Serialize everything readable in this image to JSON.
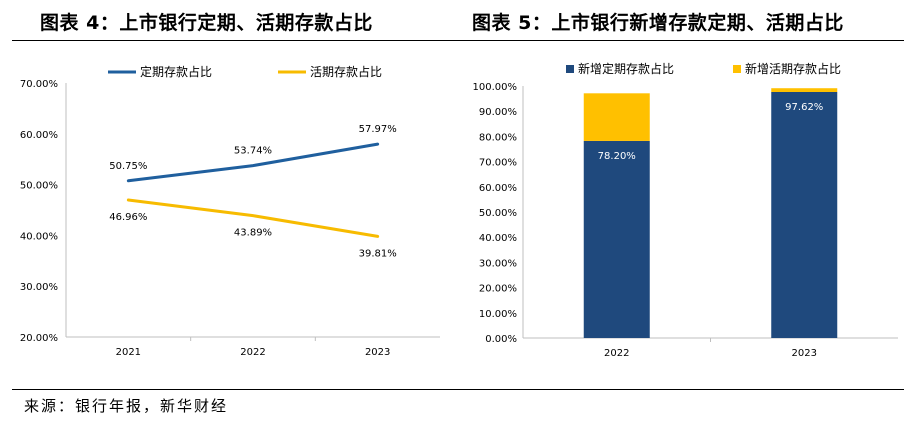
{
  "titles": {
    "left": "图表 4：上市银行定期、活期存款占比",
    "right": "图表 5：上市银行新增存款定期、活期占比"
  },
  "source": "来源：银行年报，新华财经",
  "colors": {
    "blue": "#1f5f9e",
    "yellow": "#f7bb00",
    "navy": "#1f497d",
    "gold": "#ffc000",
    "axis": "#bfbfbf"
  },
  "chart_data": [
    {
      "type": "line",
      "title": "上市银行定期、活期存款占比",
      "categories": [
        "2021",
        "2022",
        "2023"
      ],
      "ylim": [
        20,
        70
      ],
      "yticks": [
        "20.00%",
        "30.00%",
        "40.00%",
        "50.00%",
        "60.00%",
        "70.00%"
      ],
      "ytick_values": [
        20,
        30,
        40,
        50,
        60,
        70
      ],
      "legend_position": "top",
      "series": [
        {
          "name": "定期存款占比",
          "values": [
            50.75,
            53.74,
            57.97
          ],
          "labels": [
            "50.75%",
            "53.74%",
            "57.97%"
          ],
          "color": "#1f5f9e"
        },
        {
          "name": "活期存款占比",
          "values": [
            46.96,
            43.89,
            39.81
          ],
          "labels": [
            "46.96%",
            "43.89%",
            "39.81%"
          ],
          "color": "#f7bb00"
        }
      ]
    },
    {
      "type": "bar",
      "stacked": true,
      "title": "上市银行新增存款定期、活期占比",
      "categories": [
        "2022",
        "2023"
      ],
      "ylim": [
        0,
        100
      ],
      "yticks": [
        "0.00%",
        "10.00%",
        "20.00%",
        "30.00%",
        "40.00%",
        "50.00%",
        "60.00%",
        "70.00%",
        "80.00%",
        "90.00%",
        "100.00%"
      ],
      "ytick_values": [
        0,
        10,
        20,
        30,
        40,
        50,
        60,
        70,
        80,
        90,
        100
      ],
      "legend_position": "top",
      "series": [
        {
          "name": "新增定期存款占比",
          "values": [
            78.2,
            97.62
          ],
          "labels": [
            "78.20%",
            "97.62%"
          ],
          "color": "#1f497d"
        },
        {
          "name": "新增活期存款占比",
          "values": [
            18.9,
            1.5
          ],
          "color": "#ffc000"
        }
      ]
    }
  ]
}
